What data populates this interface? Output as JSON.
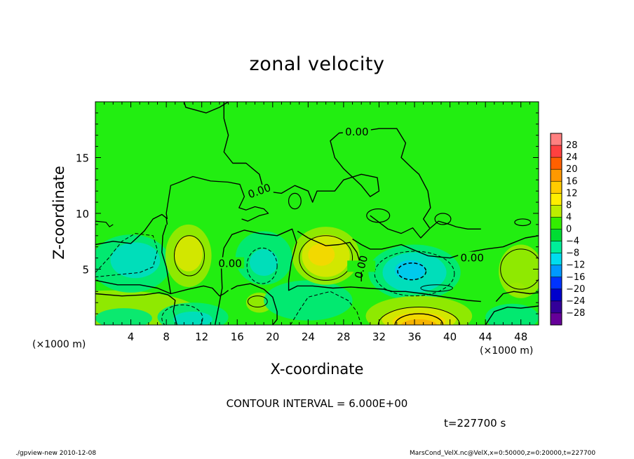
{
  "chart_data": {
    "type": "heatmap",
    "title": "zonal velocity",
    "xlabel": "X-coordinate",
    "ylabel": "Z-coordinate",
    "x_unit": "(×1000 m)",
    "y_unit": "(×1000 m)",
    "xlim": [
      0,
      50
    ],
    "ylim": [
      0,
      20
    ],
    "x_ticks": [
      4,
      8,
      12,
      16,
      20,
      24,
      28,
      32,
      36,
      40,
      44,
      48
    ],
    "y_ticks": [
      5,
      10,
      15
    ],
    "contour_label": "0.00",
    "colorbar": {
      "levels": [
        28,
        24,
        20,
        16,
        12,
        8,
        4,
        0,
        -4,
        -8,
        -12,
        -16,
        -20,
        -24,
        -28
      ],
      "labels": [
        "28",
        "24",
        "20",
        "16",
        "12",
        "8",
        "4",
        "0",
        "−4",
        "−8",
        "−12",
        "−16",
        "−20",
        "−24",
        "−28"
      ],
      "colors": [
        "#ff8080",
        "#ff4040",
        "#ff6000",
        "#ff9900",
        "#ffcc00",
        "#ffee00",
        "#bbee00",
        "#33ee00",
        "#00dd33",
        "#00ee99",
        "#00ddee",
        "#0099ff",
        "#0033ff",
        "#0000cc",
        "#330099",
        "#660099"
      ]
    },
    "fill_colors": {
      "zero": "#22ee11",
      "pos_weak": "#99e800",
      "pos_mid": "#d8e600",
      "pos_strong": "#f4d800",
      "pos_max": "#f6b000",
      "neg_weak": "#00e878",
      "neg_mid": "#00dcc0",
      "neg_strong": "#00c8f0"
    }
  },
  "contour_interval": "CONTOUR INTERVAL = 6.000E+00",
  "time_label": "t=227700 s",
  "footer_left": "./gpview-new  2010-12-08",
  "footer_right": "MarsCond_VelX.nc@VelX,x=0:50000,z=0:20000,t=227700"
}
